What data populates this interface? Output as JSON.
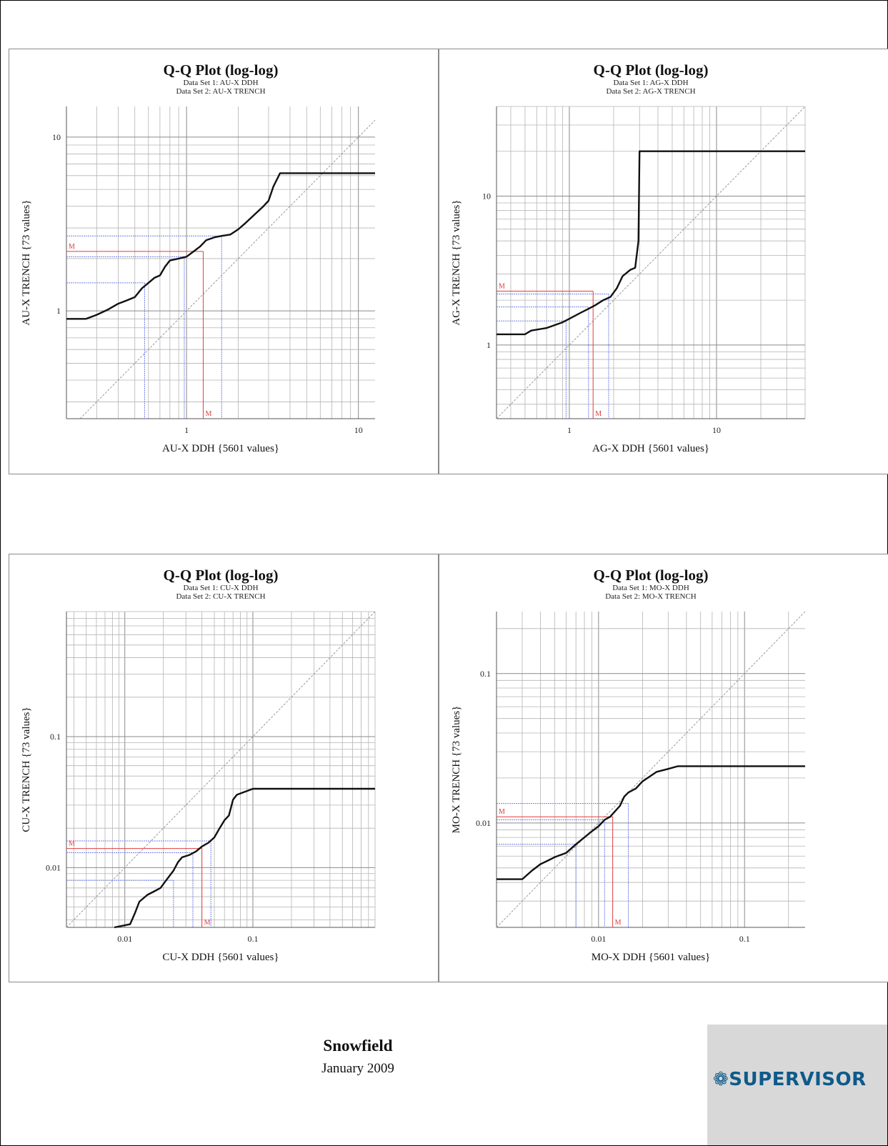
{
  "footer": {
    "project": "Snowfield",
    "date": "January 2009"
  },
  "logo": {
    "text": "SUPERVISOR",
    "icon": "gear-flower-icon",
    "color": "#0e5a8a",
    "background": "#d8d8d8"
  },
  "colors": {
    "curve": "#111111",
    "diagonal": "#9a9a9a",
    "grid": "#b4b4b4",
    "guide_blue": "#6f7fe6",
    "guide_red": "#e23c3c"
  },
  "chart_data": [
    {
      "type": "line",
      "scale": "log-log",
      "title": "Q-Q Plot (log-log)",
      "subtitle1": "Data Set 1:  AU-X DDH",
      "subtitle2": "Data Set 2:  AU-X TRENCH",
      "xlabel": "AU-X DDH {5601 values}",
      "ylabel": "AU-X TRENCH {73 values}",
      "xlim": [
        0.2,
        12.5
      ],
      "ylim": [
        0.24,
        15
      ],
      "xticks": [
        {
          "v": 1,
          "label": "1"
        },
        {
          "v": 10,
          "label": "10"
        }
      ],
      "yticks": [
        {
          "v": 1,
          "label": "1"
        },
        {
          "v": 10,
          "label": "10"
        }
      ],
      "median_label": "M",
      "median": {
        "x": 1.25,
        "y": 2.2
      },
      "guides_x": [
        0.57,
        0.97,
        1.6
      ],
      "guides_y": [
        1.45,
        2.05,
        2.7
      ],
      "series": [
        {
          "x": [
            0.2,
            0.26,
            0.3,
            0.35,
            0.4,
            0.45,
            0.5,
            0.55,
            0.6,
            0.65,
            0.7,
            0.75,
            0.8,
            0.9,
            1.0,
            1.1,
            1.2,
            1.3,
            1.45,
            1.6,
            1.8,
            2.0,
            2.2,
            2.5,
            2.8,
            3.0,
            3.2,
            3.5,
            5.0,
            12.5
          ],
          "y": [
            0.9,
            0.9,
            0.95,
            1.02,
            1.1,
            1.15,
            1.2,
            1.35,
            1.45,
            1.55,
            1.6,
            1.8,
            1.95,
            2.0,
            2.05,
            2.2,
            2.35,
            2.55,
            2.65,
            2.7,
            2.75,
            2.95,
            3.2,
            3.6,
            4.0,
            4.3,
            5.2,
            6.2,
            6.2,
            6.2
          ]
        }
      ]
    },
    {
      "type": "line",
      "scale": "log-log",
      "title": "Q-Q Plot (log-log)",
      "subtitle1": "Data Set 1:  AG-X DDH",
      "subtitle2": "Data Set 2:  AG-X TRENCH",
      "xlabel": "AG-X DDH {5601 values}",
      "ylabel": "AG-X TRENCH {73 values}",
      "xlim": [
        0.32,
        40
      ],
      "ylim": [
        0.32,
        40
      ],
      "xticks": [
        {
          "v": 1,
          "label": "1"
        },
        {
          "v": 10,
          "label": "10"
        }
      ],
      "yticks": [
        {
          "v": 1,
          "label": "1"
        },
        {
          "v": 10,
          "label": "10"
        }
      ],
      "median_label": "M",
      "median": {
        "x": 1.45,
        "y": 2.3
      },
      "guides_x": [
        0.95,
        1.35,
        1.85
      ],
      "guides_y": [
        1.45,
        1.8,
        2.2
      ],
      "series": [
        {
          "x": [
            0.32,
            0.5,
            0.55,
            0.7,
            0.9,
            1.0,
            1.2,
            1.35,
            1.5,
            1.7,
            1.9,
            2.1,
            2.3,
            2.6,
            2.8,
            2.95,
            3.0,
            10,
            40
          ],
          "y": [
            1.18,
            1.18,
            1.25,
            1.3,
            1.42,
            1.5,
            1.65,
            1.75,
            1.85,
            2.0,
            2.1,
            2.4,
            2.9,
            3.2,
            3.3,
            5.0,
            20,
            20,
            20
          ]
        }
      ]
    },
    {
      "type": "line",
      "scale": "log-log",
      "title": "Q-Q Plot (log-log)",
      "subtitle1": "Data Set 1:  CU-X DDH",
      "subtitle2": "Data Set 2:  CU-X TRENCH",
      "xlabel": "CU-X DDH {5601 values}",
      "ylabel": "CU-X TRENCH {73 values}",
      "xlim": [
        0.0035,
        0.9
      ],
      "ylim": [
        0.0035,
        0.9
      ],
      "xticks": [
        {
          "v": 0.01,
          "label": "0.01"
        },
        {
          "v": 0.1,
          "label": "0.1"
        }
      ],
      "yticks": [
        {
          "v": 0.01,
          "label": "0.01"
        },
        {
          "v": 0.1,
          "label": "0.1"
        }
      ],
      "median_label": "M",
      "median": {
        "x": 0.04,
        "y": 0.014
      },
      "guides_x": [
        0.024,
        0.034,
        0.047
      ],
      "guides_y": [
        0.008,
        0.013,
        0.016
      ],
      "series": [
        {
          "x": [
            0.0083,
            0.011,
            0.012,
            0.013,
            0.015,
            0.017,
            0.019,
            0.021,
            0.024,
            0.026,
            0.028,
            0.032,
            0.036,
            0.04,
            0.045,
            0.05,
            0.055,
            0.06,
            0.065,
            0.07,
            0.075,
            0.1,
            0.9
          ],
          "y": [
            0.0035,
            0.0037,
            0.0045,
            0.0055,
            0.0062,
            0.0066,
            0.007,
            0.008,
            0.0095,
            0.011,
            0.012,
            0.0125,
            0.0133,
            0.0145,
            0.0155,
            0.017,
            0.02,
            0.023,
            0.025,
            0.033,
            0.036,
            0.04,
            0.04
          ]
        }
      ]
    },
    {
      "type": "line",
      "scale": "log-log",
      "title": "Q-Q Plot (log-log)",
      "subtitle1": "Data Set 1:  MO-X DDH",
      "subtitle2": "Data Set 2:  MO-X TRENCH",
      "xlabel": "MO-X DDH {5601 values}",
      "ylabel": "MO-X TRENCH {73 values}",
      "xlim": [
        0.002,
        0.26
      ],
      "ylim": [
        0.002,
        0.26
      ],
      "xticks": [
        {
          "v": 0.01,
          "label": "0.01"
        },
        {
          "v": 0.1,
          "label": "0.1"
        }
      ],
      "yticks": [
        {
          "v": 0.01,
          "label": "0.01"
        },
        {
          "v": 0.1,
          "label": "0.1"
        }
      ],
      "median_label": "M",
      "median": {
        "x": 0.0125,
        "y": 0.011
      },
      "guides_x": [
        0.007,
        0.011,
        0.016
      ],
      "guides_y": [
        0.0072,
        0.0105,
        0.0135
      ],
      "series": [
        {
          "x": [
            0.002,
            0.003,
            0.0035,
            0.004,
            0.0045,
            0.005,
            0.006,
            0.007,
            0.008,
            0.009,
            0.01,
            0.011,
            0.012,
            0.013,
            0.014,
            0.015,
            0.016,
            0.018,
            0.02,
            0.025,
            0.03,
            0.035,
            0.04,
            0.26
          ],
          "y": [
            0.0042,
            0.0042,
            0.0048,
            0.0053,
            0.0056,
            0.0059,
            0.0063,
            0.0072,
            0.008,
            0.0088,
            0.0095,
            0.0105,
            0.011,
            0.012,
            0.013,
            0.015,
            0.016,
            0.017,
            0.019,
            0.022,
            0.023,
            0.024,
            0.024,
            0.024
          ]
        }
      ]
    }
  ]
}
